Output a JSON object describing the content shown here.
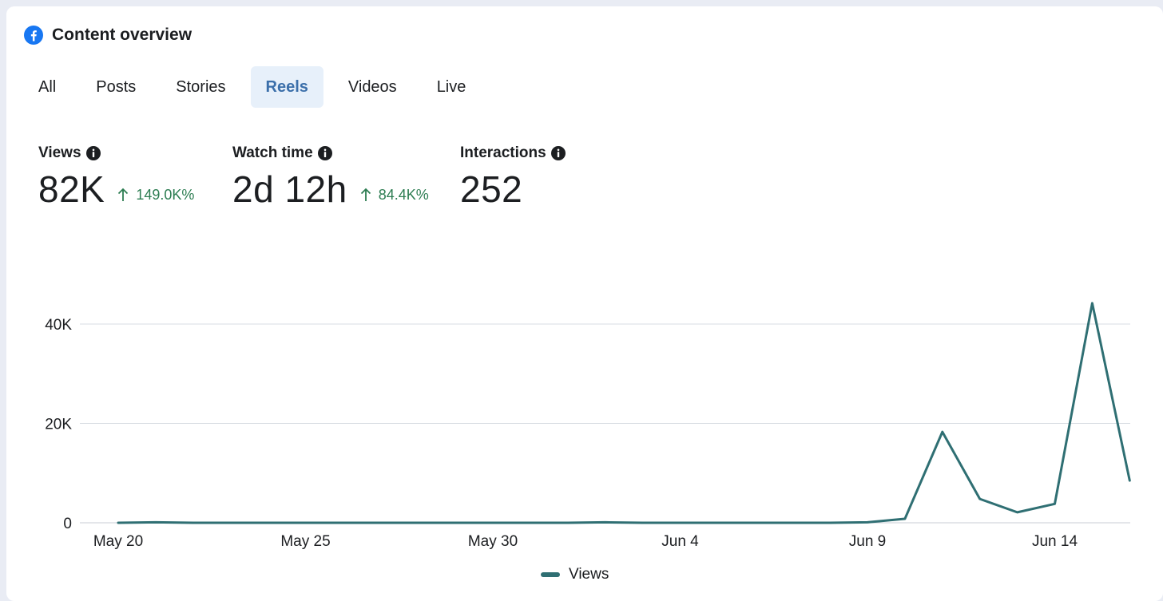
{
  "header": {
    "title": "Content overview",
    "icon": "facebook-icon"
  },
  "tabs": [
    {
      "label": "All",
      "active": false
    },
    {
      "label": "Posts",
      "active": false
    },
    {
      "label": "Stories",
      "active": false
    },
    {
      "label": "Reels",
      "active": true
    },
    {
      "label": "Videos",
      "active": false
    },
    {
      "label": "Live",
      "active": false
    }
  ],
  "metrics": [
    {
      "label": "Views",
      "value": "82K",
      "delta": "149.0K%"
    },
    {
      "label": "Watch time",
      "value": "2d 12h",
      "delta": "84.4K%"
    },
    {
      "label": "Interactions",
      "value": "252",
      "delta": ""
    }
  ],
  "colors": {
    "line": "#2f6f73",
    "accent_tab_bg": "#e7f0fa",
    "accent_tab_text": "#3b6faa",
    "delta": "#2d7d52",
    "facebook_blue": "#1877f2",
    "grid": "#d9dde3"
  },
  "chart_data": {
    "type": "line",
    "x": [
      "May 20",
      "May 21",
      "May 22",
      "May 23",
      "May 24",
      "May 25",
      "May 26",
      "May 27",
      "May 28",
      "May 29",
      "May 30",
      "May 31",
      "Jun 1",
      "Jun 2",
      "Jun 3",
      "Jun 4",
      "Jun 5",
      "Jun 6",
      "Jun 7",
      "Jun 8",
      "Jun 9",
      "Jun 10",
      "Jun 11",
      "Jun 12",
      "Jun 13",
      "Jun 14",
      "Jun 15",
      "Jun 16"
    ],
    "series": [
      {
        "name": "Views",
        "values": [
          0,
          100,
          0,
          0,
          0,
          0,
          0,
          0,
          0,
          0,
          0,
          0,
          0,
          100,
          0,
          0,
          0,
          0,
          0,
          0,
          100,
          800,
          18300,
          4800,
          2100,
          3800,
          44200,
          8500
        ]
      }
    ],
    "x_ticks": [
      "May 20",
      "May 25",
      "May 30",
      "Jun 4",
      "Jun 9",
      "Jun 14"
    ],
    "y_ticks": [
      "0",
      "20K",
      "40K"
    ],
    "y_tick_values": [
      0,
      20000,
      40000
    ],
    "ylim": [
      0,
      40000
    ],
    "grid": true,
    "legend_position": "bottom-center",
    "title": "",
    "xlabel": "",
    "ylabel": ""
  }
}
